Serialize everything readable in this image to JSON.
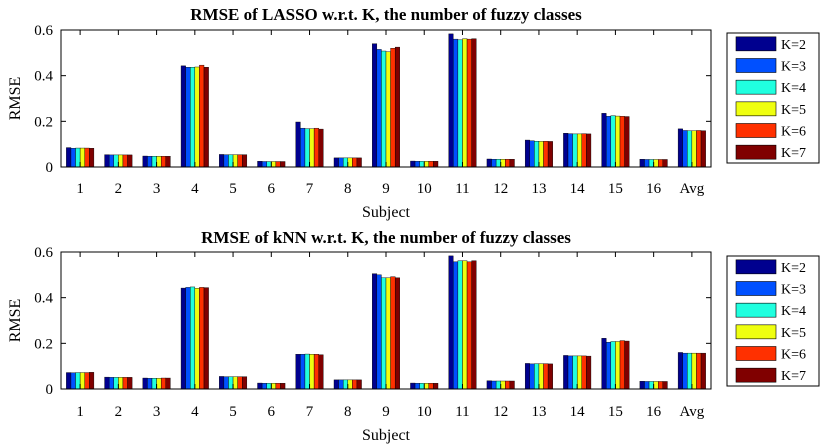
{
  "chart_data": [
    {
      "type": "bar",
      "title": "RMSE of LASSO w.r.t. K, the number of fuzzy classes",
      "xlabel": "Subject",
      "ylabel": "RMSE",
      "ylim": [
        0,
        0.6
      ],
      "yticks": [
        "0",
        "0.2",
        "0.4",
        "0.6"
      ],
      "grid": false,
      "legend_position": "right",
      "categories": [
        "1",
        "2",
        "3",
        "4",
        "5",
        "6",
        "7",
        "8",
        "9",
        "10",
        "11",
        "12",
        "13",
        "14",
        "15",
        "16",
        "Avg"
      ],
      "series": [
        {
          "name": "K=2",
          "color": "#00008f",
          "values": [
            0.085,
            0.054,
            0.048,
            0.443,
            0.055,
            0.025,
            0.197,
            0.04,
            0.54,
            0.026,
            0.583,
            0.035,
            0.118,
            0.148,
            0.235,
            0.034,
            0.167
          ]
        },
        {
          "name": "K=3",
          "color": "#0050ff",
          "values": [
            0.082,
            0.053,
            0.047,
            0.437,
            0.054,
            0.024,
            0.17,
            0.04,
            0.515,
            0.025,
            0.56,
            0.034,
            0.115,
            0.146,
            0.222,
            0.033,
            0.16
          ]
        },
        {
          "name": "K=4",
          "color": "#20ffdf",
          "values": [
            0.083,
            0.053,
            0.047,
            0.437,
            0.054,
            0.024,
            0.168,
            0.04,
            0.508,
            0.025,
            0.557,
            0.034,
            0.113,
            0.145,
            0.225,
            0.033,
            0.159
          ]
        },
        {
          "name": "K=5",
          "color": "#efff10",
          "values": [
            0.083,
            0.053,
            0.047,
            0.438,
            0.054,
            0.024,
            0.168,
            0.04,
            0.505,
            0.025,
            0.562,
            0.034,
            0.112,
            0.145,
            0.223,
            0.033,
            0.159
          ]
        },
        {
          "name": "K=6",
          "color": "#ff3000",
          "values": [
            0.083,
            0.053,
            0.047,
            0.446,
            0.054,
            0.024,
            0.17,
            0.04,
            0.52,
            0.025,
            0.56,
            0.034,
            0.113,
            0.146,
            0.222,
            0.033,
            0.16
          ]
        },
        {
          "name": "K=7",
          "color": "#800000",
          "values": [
            0.082,
            0.053,
            0.047,
            0.437,
            0.054,
            0.024,
            0.166,
            0.04,
            0.525,
            0.025,
            0.562,
            0.034,
            0.112,
            0.145,
            0.221,
            0.033,
            0.159
          ]
        }
      ]
    },
    {
      "type": "bar",
      "title": "RMSE of kNN w.r.t. K, the number of fuzzy classes",
      "xlabel": "Subject",
      "ylabel": "RMSE",
      "ylim": [
        0,
        0.6
      ],
      "yticks": [
        "0",
        "0.2",
        "0.4",
        "0.6"
      ],
      "grid": false,
      "legend_position": "right",
      "categories": [
        "1",
        "2",
        "3",
        "4",
        "5",
        "6",
        "7",
        "8",
        "9",
        "10",
        "11",
        "12",
        "13",
        "14",
        "15",
        "16",
        "Avg"
      ],
      "series": [
        {
          "name": "K=2",
          "color": "#00008f",
          "values": [
            0.072,
            0.052,
            0.048,
            0.442,
            0.055,
            0.026,
            0.152,
            0.04,
            0.505,
            0.026,
            0.583,
            0.036,
            0.112,
            0.147,
            0.222,
            0.034,
            0.16
          ]
        },
        {
          "name": "K=3",
          "color": "#0050ff",
          "values": [
            0.071,
            0.051,
            0.047,
            0.445,
            0.054,
            0.025,
            0.152,
            0.04,
            0.5,
            0.025,
            0.557,
            0.035,
            0.11,
            0.145,
            0.205,
            0.033,
            0.157
          ]
        },
        {
          "name": "K=4",
          "color": "#20ffdf",
          "values": [
            0.072,
            0.051,
            0.047,
            0.447,
            0.054,
            0.025,
            0.153,
            0.04,
            0.487,
            0.025,
            0.562,
            0.035,
            0.111,
            0.145,
            0.208,
            0.033,
            0.157
          ]
        },
        {
          "name": "K=5",
          "color": "#efff10",
          "values": [
            0.072,
            0.051,
            0.047,
            0.441,
            0.054,
            0.025,
            0.152,
            0.04,
            0.487,
            0.025,
            0.562,
            0.035,
            0.111,
            0.145,
            0.208,
            0.033,
            0.157
          ]
        },
        {
          "name": "K=6",
          "color": "#ff3000",
          "values": [
            0.072,
            0.051,
            0.048,
            0.445,
            0.054,
            0.025,
            0.152,
            0.04,
            0.492,
            0.025,
            0.557,
            0.035,
            0.111,
            0.145,
            0.212,
            0.033,
            0.157
          ]
        },
        {
          "name": "K=7",
          "color": "#800000",
          "values": [
            0.073,
            0.051,
            0.048,
            0.444,
            0.054,
            0.025,
            0.15,
            0.04,
            0.487,
            0.025,
            0.562,
            0.035,
            0.11,
            0.144,
            0.21,
            0.033,
            0.157
          ]
        }
      ]
    }
  ]
}
